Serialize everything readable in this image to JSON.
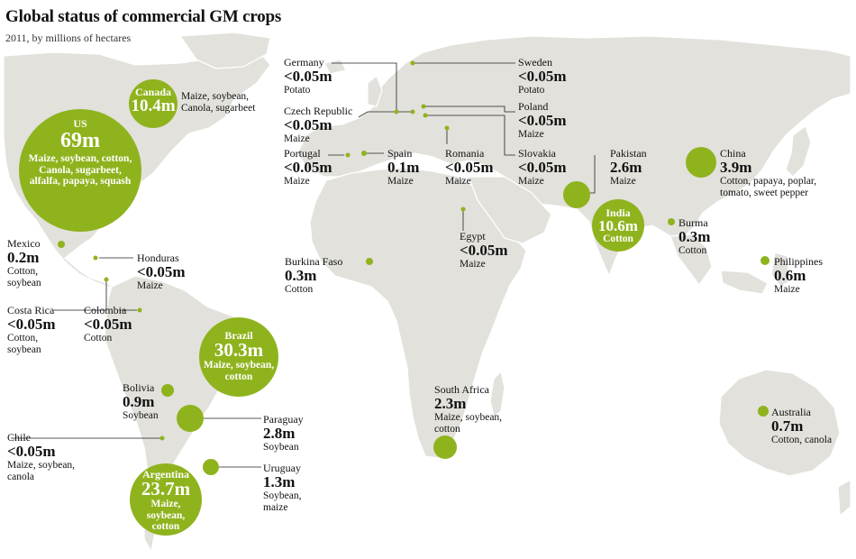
{
  "title": "Global status of commercial GM crops",
  "subtitle": "2011, by millions of hectares",
  "colors": {
    "land": "#e2e1dc",
    "circle": "#8fb31d",
    "text": "#111111"
  },
  "countries": {
    "us": {
      "name": "US",
      "value": "69m",
      "crops": "Maize, soybean, cotton, Canola, sugarbeet, alfalfa, papaya, squash",
      "area_mha": 69
    },
    "canada": {
      "name": "Canada",
      "value": "10.4m",
      "crops": "Maize, soybean, Canola, sugarbeet",
      "area_mha": 10.4
    },
    "mexico": {
      "name": "Mexico",
      "value": "0.2m",
      "crops": "Cotton, soybean",
      "area_mha": 0.2
    },
    "honduras": {
      "name": "Honduras",
      "value": "<0.05m",
      "crops": "Maize"
    },
    "costa_rica": {
      "name": "Costa Rica",
      "value": "<0.05m",
      "crops": "Cotton, soybean"
    },
    "colombia": {
      "name": "Colombia",
      "value": "<0.05m",
      "crops": "Cotton"
    },
    "brazil": {
      "name": "Brazil",
      "value": "30.3m",
      "crops": "Maize, soybean, cotton",
      "area_mha": 30.3
    },
    "bolivia": {
      "name": "Bolivia",
      "value": "0.9m",
      "crops": "Soybean",
      "area_mha": 0.9
    },
    "paraguay": {
      "name": "Paraguay",
      "value": "2.8m",
      "crops": "Soybean",
      "area_mha": 2.8
    },
    "chile": {
      "name": "Chile",
      "value": "<0.05m",
      "crops": "Maize, soybean, canola"
    },
    "argentina": {
      "name": "Argentina",
      "value": "23.7m",
      "crops": "Maize, soybean, cotton",
      "area_mha": 23.7
    },
    "uruguay": {
      "name": "Uruguay",
      "value": "1.3m",
      "crops": "Soybean, maize",
      "area_mha": 1.3
    },
    "germany": {
      "name": "Germany",
      "value": "<0.05m",
      "crops": "Potato"
    },
    "czech": {
      "name": "Czech Republic",
      "value": "<0.05m",
      "crops": "Maize"
    },
    "portugal": {
      "name": "Portugal",
      "value": "<0.05m",
      "crops": "Maize"
    },
    "spain": {
      "name": "Spain",
      "value": "0.1m",
      "crops": "Maize",
      "area_mha": 0.1
    },
    "romania": {
      "name": "Romania",
      "value": "<0.05m",
      "crops": "Maize"
    },
    "sweden": {
      "name": "Sweden",
      "value": "<0.05m",
      "crops": "Potato"
    },
    "poland": {
      "name": "Poland",
      "value": "<0.05m",
      "crops": "Maize"
    },
    "slovakia": {
      "name": "Slovakia",
      "value": "<0.05m",
      "crops": "Maize"
    },
    "egypt": {
      "name": "Egypt",
      "value": "<0.05m",
      "crops": "Maize"
    },
    "burkina": {
      "name": "Burkina Faso",
      "value": "0.3m",
      "crops": "Cotton",
      "area_mha": 0.3
    },
    "south_africa": {
      "name": "South Africa",
      "value": "2.3m",
      "crops": "Maize, soybean, cotton",
      "area_mha": 2.3
    },
    "pakistan": {
      "name": "Pakistan",
      "value": "2.6m",
      "crops": "Maize",
      "area_mha": 2.6
    },
    "india": {
      "name": "India",
      "value": "10.6m",
      "crops": "Cotton",
      "area_mha": 10.6
    },
    "china": {
      "name": "China",
      "value": "3.9m",
      "crops": "Cotton, papaya, poplar, tomato, sweet pepper",
      "area_mha": 3.9
    },
    "burma": {
      "name": "Burma",
      "value": "0.3m",
      "crops": "Cotton",
      "area_mha": 0.3
    },
    "philippines": {
      "name": "Philippines",
      "value": "0.6m",
      "crops": "Maize",
      "area_mha": 0.6
    },
    "australia": {
      "name": "Australia",
      "value": "0.7m",
      "crops": "Cotton, canola",
      "area_mha": 0.7
    }
  }
}
